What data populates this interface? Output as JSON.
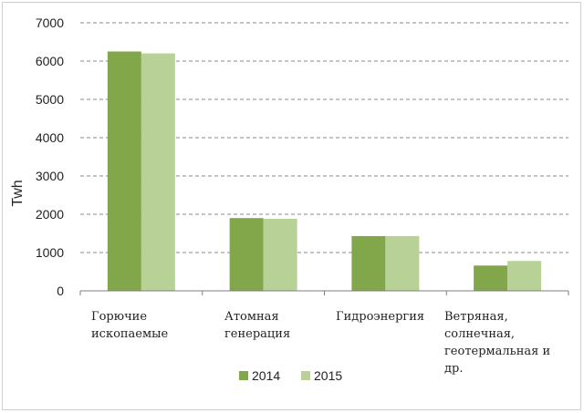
{
  "chart_data": {
    "type": "bar",
    "ylabel": "Twh",
    "ylim": [
      0,
      7000
    ],
    "yticks": [
      0,
      1000,
      2000,
      3000,
      4000,
      5000,
      6000,
      7000
    ],
    "grid": "horizontal-dashed",
    "categories": [
      [
        "Горючие",
        "ископаемые"
      ],
      [
        "Атомная",
        "генерация"
      ],
      [
        "Гидроэнергия"
      ],
      [
        "Ветряная,",
        "солнечная,",
        "геотермальная и",
        "др."
      ]
    ],
    "series": [
      {
        "name": "2014",
        "color": "#82a64a",
        "values": [
          6250,
          1900,
          1430,
          660
        ]
      },
      {
        "name": "2015",
        "color": "#b8d196",
        "values": [
          6200,
          1880,
          1430,
          780
        ]
      }
    ],
    "legend_position": "bottom"
  }
}
